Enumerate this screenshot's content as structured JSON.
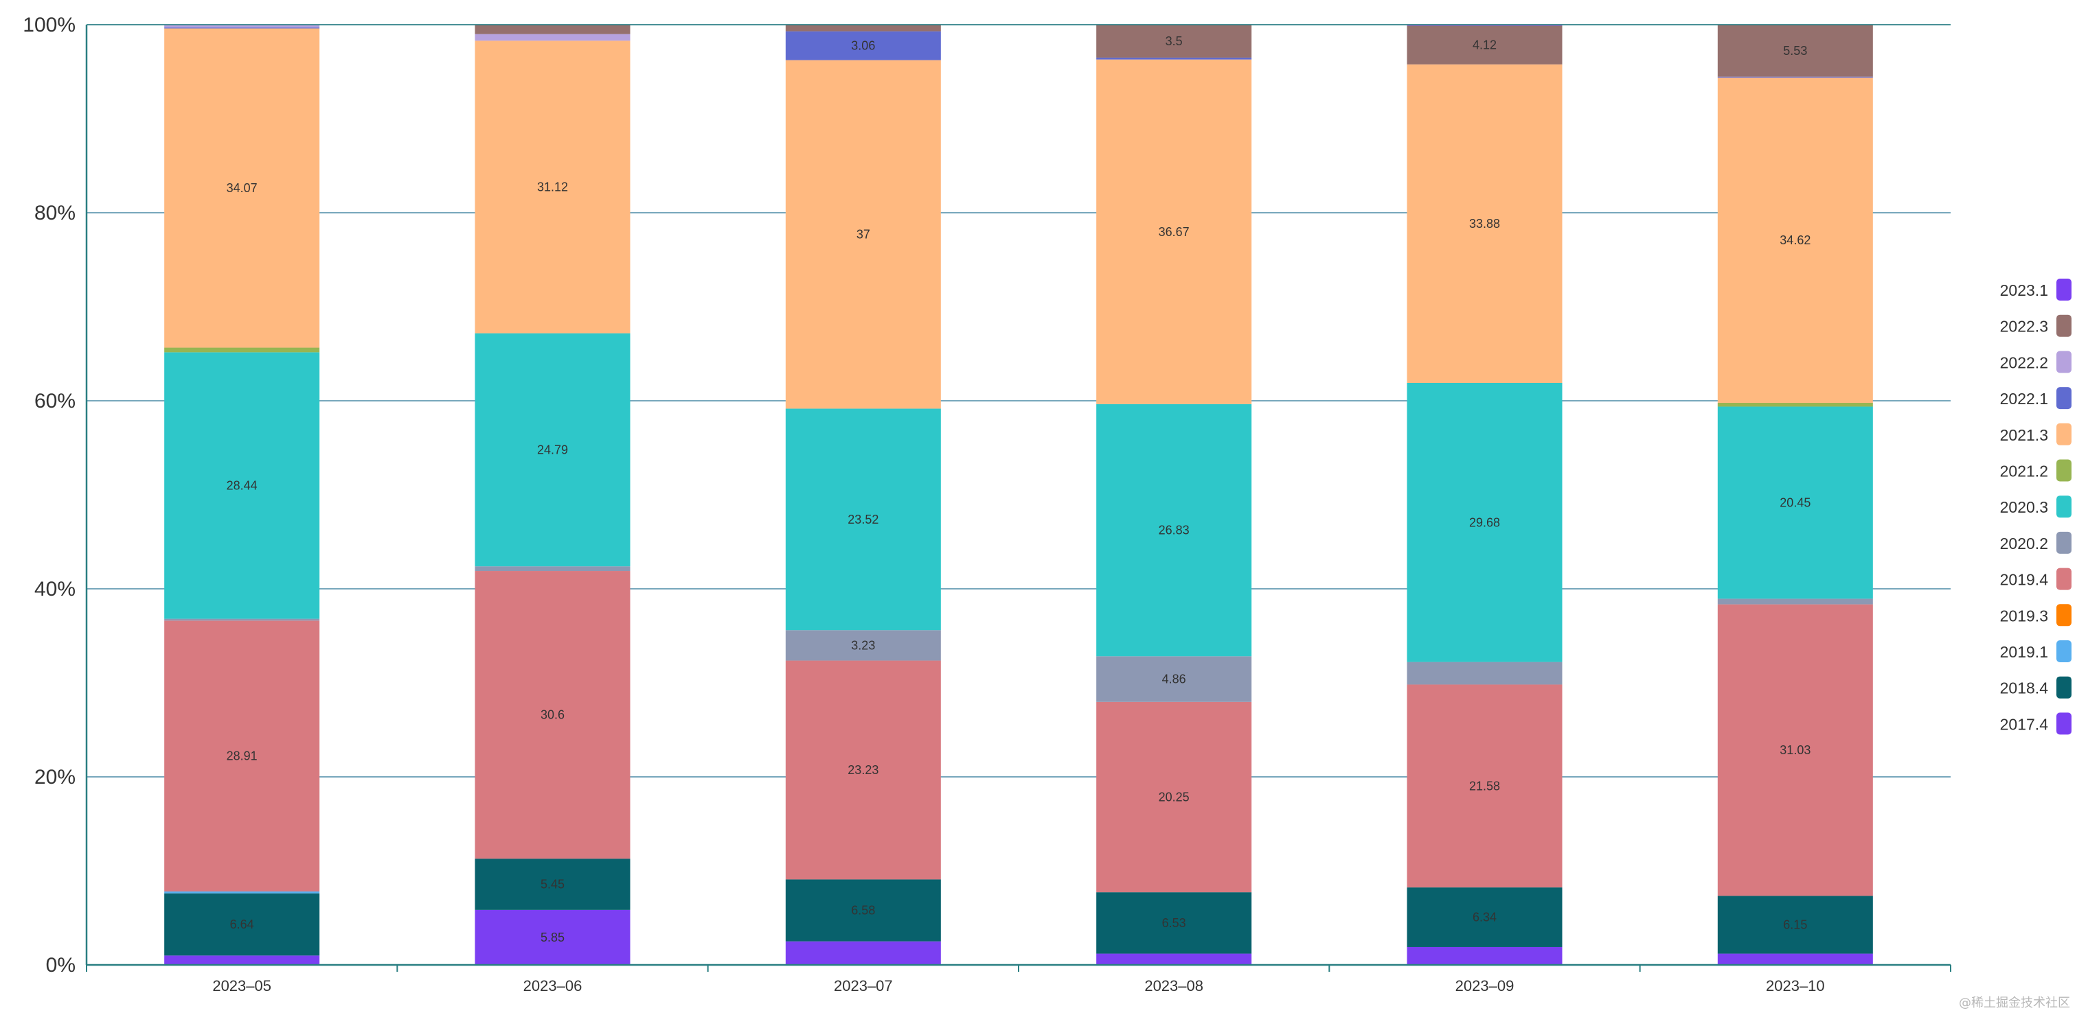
{
  "chart_data": {
    "type": "bar",
    "stacked": true,
    "normalized": true,
    "title": "",
    "xlabel": "",
    "ylabel": "",
    "ylim": [
      0,
      100
    ],
    "y_tick_labels": [
      "0%",
      "20%",
      "40%",
      "60%",
      "80%",
      "100%"
    ],
    "y_ticks": [
      0,
      20,
      40,
      60,
      80,
      100
    ],
    "grid": true,
    "legend_position": "right",
    "categories": [
      "2023-05",
      "2023-06",
      "2023-07",
      "2023-08",
      "2023-09",
      "2023-10"
    ],
    "series": [
      {
        "name": "2017.4",
        "color": "#7b3ff2",
        "values": [
          1.0,
          5.85,
          2.5,
          1.2,
          1.9,
          1.2
        ],
        "labels": [
          "",
          "5.85",
          "",
          "",
          "",
          ""
        ]
      },
      {
        "name": "2018.4",
        "color": "#08616c",
        "values": [
          6.64,
          5.45,
          6.58,
          6.53,
          6.34,
          6.15
        ],
        "labels": [
          "6.64",
          "5.45",
          "6.58",
          "6.53",
          "6.34",
          "6.15"
        ]
      },
      {
        "name": "2019.1",
        "color": "#59b0f0",
        "values": [
          0.2,
          0,
          0,
          0,
          0,
          0
        ],
        "labels": [
          "",
          "",
          "",
          "",
          "",
          ""
        ]
      },
      {
        "name": "2019.3",
        "color": "#ff8000",
        "values": [
          0,
          0,
          0,
          0,
          0,
          0
        ],
        "labels": [
          "",
          "",
          "",
          "",
          "",
          ""
        ]
      },
      {
        "name": "2019.4",
        "color": "#d87a80",
        "values": [
          28.91,
          30.6,
          23.23,
          20.25,
          21.58,
          31.03
        ],
        "labels": [
          "28.91",
          "30.6",
          "23.23",
          "20.25",
          "21.58",
          "31.03"
        ]
      },
      {
        "name": "2020.2",
        "color": "#8d98b3",
        "values": [
          0.2,
          0.5,
          3.23,
          4.86,
          2.4,
          0.6
        ],
        "labels": [
          "",
          "",
          "3.23",
          "4.86",
          "",
          ""
        ]
      },
      {
        "name": "2020.3",
        "color": "#2ec7c9",
        "values": [
          28.44,
          24.79,
          23.52,
          26.83,
          29.68,
          20.45
        ],
        "labels": [
          "28.44",
          "24.79",
          "23.52",
          "26.83",
          "29.68",
          "20.45"
        ]
      },
      {
        "name": "2021.2",
        "color": "#97b552",
        "values": [
          0.5,
          0,
          0,
          0,
          0,
          0.4
        ],
        "labels": [
          "",
          "",
          "",
          "",
          "",
          ""
        ]
      },
      {
        "name": "2021.3",
        "color": "#ffb980",
        "values": [
          34.07,
          31.12,
          37,
          36.67,
          33.88,
          34.62
        ],
        "labels": [
          "34.07",
          "31.12",
          "37",
          "36.67",
          "33.88",
          "34.62"
        ]
      },
      {
        "name": "2022.1",
        "color": "#5f6bd0",
        "values": [
          0.1,
          0,
          3.06,
          0.2,
          0,
          0.1
        ],
        "labels": [
          "",
          "",
          "3.06",
          "",
          "",
          ""
        ]
      },
      {
        "name": "2022.2",
        "color": "#b6a2de",
        "values": [
          0.3,
          0.7,
          0,
          0,
          0,
          0
        ],
        "labels": [
          "",
          "",
          "",
          "",
          "",
          ""
        ]
      },
      {
        "name": "2022.3",
        "color": "#95706d",
        "values": [
          0,
          1.0,
          0.7,
          3.5,
          4.12,
          5.53
        ],
        "labels": [
          "",
          "",
          "",
          "3.5",
          "4.12",
          "5.53"
        ]
      },
      {
        "name": "2023.1",
        "color": "#7b3ff2",
        "values": [
          0,
          0,
          0,
          0,
          0.1,
          0
        ],
        "labels": [
          "",
          "",
          "",
          "",
          "",
          ""
        ]
      }
    ],
    "legend_order": [
      "2023.1",
      "2022.3",
      "2022.2",
      "2022.1",
      "2021.3",
      "2021.2",
      "2020.3",
      "2020.2",
      "2019.4",
      "2019.3",
      "2019.1",
      "2018.4",
      "2017.4"
    ]
  },
  "watermark": "@稀土掘金技术社区",
  "colors": {
    "axis": "#2a7f82",
    "grid": "#4a8aa6",
    "text": "#333333"
  }
}
